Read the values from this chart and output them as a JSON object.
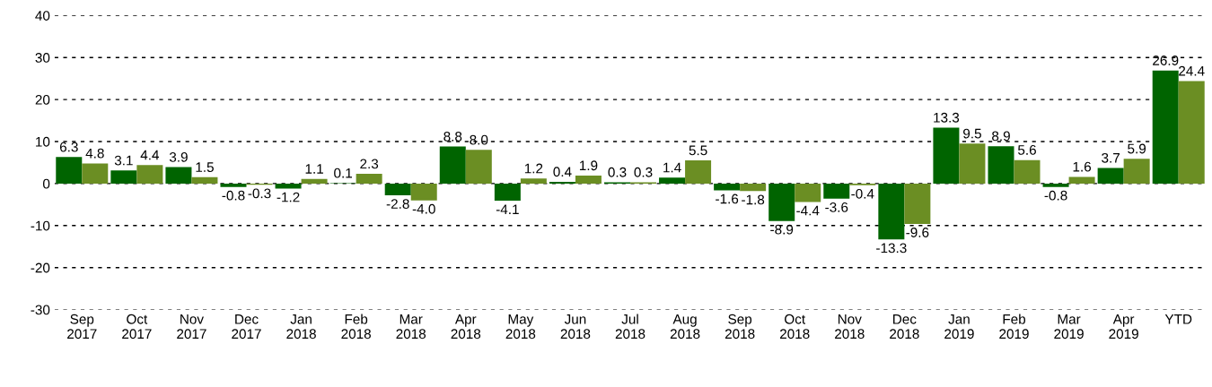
{
  "chart_data": {
    "type": "bar",
    "categories": [
      "Sep\n2017",
      "Oct\n2017",
      "Nov\n2017",
      "Dec\n2017",
      "Jan\n2018",
      "Feb\n2018",
      "Mar\n2018",
      "Apr\n2018",
      "May\n2018",
      "Jun\n2018",
      "Jul\n2018",
      "Aug\n2018",
      "Sep\n2018",
      "Oct\n2018",
      "Nov\n2018",
      "Dec\n2018",
      "Jan\n2019",
      "Feb\n2019",
      "Mar\n2019",
      "Apr\n2019",
      "YTD"
    ],
    "series": [
      {
        "color": "#006400",
        "values": [
          6.3,
          3.1,
          3.9,
          -0.8,
          -1.2,
          0.1,
          -2.8,
          8.8,
          -4.1,
          0.4,
          0.3,
          1.4,
          -1.6,
          -8.9,
          -3.6,
          -13.3,
          13.3,
          8.9,
          -0.8,
          3.7,
          26.9
        ],
        "value_labels": [
          "6.3",
          "3.1",
          "3.9",
          "-0.8",
          "-1.2",
          "0.1",
          "-2.8",
          "8.8",
          "-4.1",
          "0.4",
          "0.3",
          "1.4",
          "-1.6",
          "-8.9",
          "-3.6",
          "-13.3",
          "13.3",
          "8.9",
          "-0.8",
          "3.7",
          "26.9"
        ]
      },
      {
        "color": "#6b8e23",
        "values": [
          4.8,
          4.4,
          1.5,
          -0.3,
          1.1,
          2.3,
          -4.0,
          8.0,
          1.2,
          1.9,
          0.3,
          5.5,
          -1.8,
          -4.4,
          -0.4,
          -9.6,
          9.5,
          5.6,
          1.6,
          5.9,
          24.4
        ],
        "value_labels": [
          "4.8",
          "4.4",
          "1.5",
          "-0.3",
          "1.1",
          "2.3",
          "-4.0",
          "8.0",
          "1.2",
          "1.9",
          "0.3",
          "5.5",
          "-1.8",
          "-4.4",
          "-0.4",
          "-9.6",
          "9.5",
          "5.6",
          "1.6",
          "5.9",
          "24.4"
        ]
      }
    ],
    "ylim": [
      -30,
      40
    ],
    "yticks": [
      -30,
      -20,
      -10,
      0,
      10,
      20,
      30,
      40
    ],
    "grid": "y"
  }
}
